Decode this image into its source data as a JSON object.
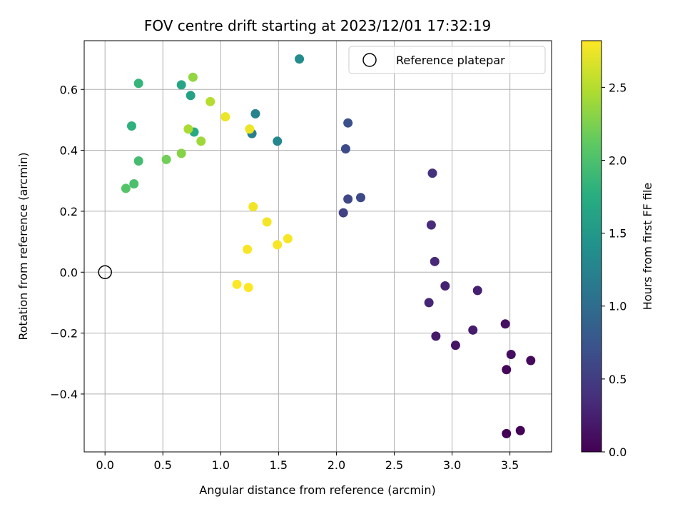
{
  "chart_data": {
    "type": "scatter",
    "title": "FOV centre drift starting at 2023/12/01 17:32:19",
    "xlabel": "Angular distance from reference (arcmin)",
    "ylabel": "Rotation from reference (arcmin)",
    "xlim": [
      -0.18,
      3.86
    ],
    "ylim": [
      -0.59,
      0.76
    ],
    "xticks": [
      0.0,
      0.5,
      1.0,
      1.5,
      2.0,
      2.5,
      3.0,
      3.5
    ],
    "yticks": [
      -0.4,
      -0.2,
      0.0,
      0.2,
      0.4,
      0.6
    ],
    "xtick_labels": [
      "0.0",
      "0.5",
      "1.0",
      "1.5",
      "2.0",
      "2.5",
      "3.0",
      "3.5"
    ],
    "ytick_labels": [
      "−0.4",
      "−0.2",
      "0.0",
      "0.2",
      "0.4",
      "0.6"
    ],
    "grid": true,
    "colormap": "viridis",
    "colorbar": {
      "label": "Hours from first FF file",
      "range": [
        0.0,
        2.82
      ],
      "ticks": [
        0.0,
        0.5,
        1.0,
        1.5,
        2.0,
        2.5
      ],
      "tick_labels": [
        "0.0",
        "0.5",
        "1.0",
        "1.5",
        "2.0",
        "2.5"
      ]
    },
    "legend": {
      "placement": "upper right",
      "entries": [
        {
          "label": "Reference platepar",
          "marker": "open-circle"
        }
      ]
    },
    "reference_point": {
      "x": 0.0,
      "y": 0.0
    },
    "points": [
      {
        "x": 3.47,
        "y": -0.53,
        "t": 0.0
      },
      {
        "x": 3.59,
        "y": -0.52,
        "t": 0.02
      },
      {
        "x": 3.47,
        "y": -0.32,
        "t": 0.05
      },
      {
        "x": 3.68,
        "y": -0.29,
        "t": 0.07
      },
      {
        "x": 3.51,
        "y": -0.27,
        "t": 0.1
      },
      {
        "x": 3.46,
        "y": -0.17,
        "t": 0.12
      },
      {
        "x": 3.03,
        "y": -0.24,
        "t": 0.15
      },
      {
        "x": 2.86,
        "y": -0.21,
        "t": 0.2
      },
      {
        "x": 3.18,
        "y": -0.19,
        "t": 0.22
      },
      {
        "x": 3.22,
        "y": -0.06,
        "t": 0.25
      },
      {
        "x": 2.94,
        "y": -0.045,
        "t": 0.27
      },
      {
        "x": 2.8,
        "y": -0.1,
        "t": 0.3
      },
      {
        "x": 2.85,
        "y": 0.035,
        "t": 0.32
      },
      {
        "x": 2.82,
        "y": 0.155,
        "t": 0.35
      },
      {
        "x": 2.83,
        "y": 0.325,
        "t": 0.4
      },
      {
        "x": 2.06,
        "y": 0.195,
        "t": 0.55
      },
      {
        "x": 2.1,
        "y": 0.24,
        "t": 0.6
      },
      {
        "x": 2.21,
        "y": 0.245,
        "t": 0.62
      },
      {
        "x": 2.08,
        "y": 0.405,
        "t": 0.65
      },
      {
        "x": 2.1,
        "y": 0.49,
        "t": 0.7
      },
      {
        "x": 1.27,
        "y": 0.455,
        "t": 1.2
      },
      {
        "x": 1.3,
        "y": 0.52,
        "t": 1.25
      },
      {
        "x": 1.49,
        "y": 0.43,
        "t": 1.3
      },
      {
        "x": 1.68,
        "y": 0.7,
        "t": 1.35
      },
      {
        "x": 0.74,
        "y": 0.58,
        "t": 1.6
      },
      {
        "x": 0.66,
        "y": 0.615,
        "t": 1.65
      },
      {
        "x": 0.77,
        "y": 0.46,
        "t": 1.7
      },
      {
        "x": 0.23,
        "y": 0.48,
        "t": 1.8
      },
      {
        "x": 0.29,
        "y": 0.62,
        "t": 1.85
      },
      {
        "x": 0.29,
        "y": 0.365,
        "t": 1.95
      },
      {
        "x": 0.25,
        "y": 0.29,
        "t": 2.0
      },
      {
        "x": 0.18,
        "y": 0.275,
        "t": 2.05
      },
      {
        "x": 0.53,
        "y": 0.37,
        "t": 2.2
      },
      {
        "x": 0.66,
        "y": 0.39,
        "t": 2.3
      },
      {
        "x": 0.76,
        "y": 0.64,
        "t": 2.35
      },
      {
        "x": 0.83,
        "y": 0.43,
        "t": 2.4
      },
      {
        "x": 0.72,
        "y": 0.47,
        "t": 2.45
      },
      {
        "x": 0.91,
        "y": 0.56,
        "t": 2.5
      },
      {
        "x": 1.04,
        "y": 0.51,
        "t": 2.75
      },
      {
        "x": 1.25,
        "y": 0.47,
        "t": 2.75
      },
      {
        "x": 1.28,
        "y": 0.215,
        "t": 2.77
      },
      {
        "x": 1.4,
        "y": 0.165,
        "t": 2.78
      },
      {
        "x": 1.58,
        "y": 0.11,
        "t": 2.79
      },
      {
        "x": 1.49,
        "y": 0.09,
        "t": 2.8
      },
      {
        "x": 1.23,
        "y": 0.075,
        "t": 2.8
      },
      {
        "x": 1.14,
        "y": -0.04,
        "t": 2.81
      },
      {
        "x": 1.24,
        "y": -0.05,
        "t": 2.82
      }
    ]
  }
}
